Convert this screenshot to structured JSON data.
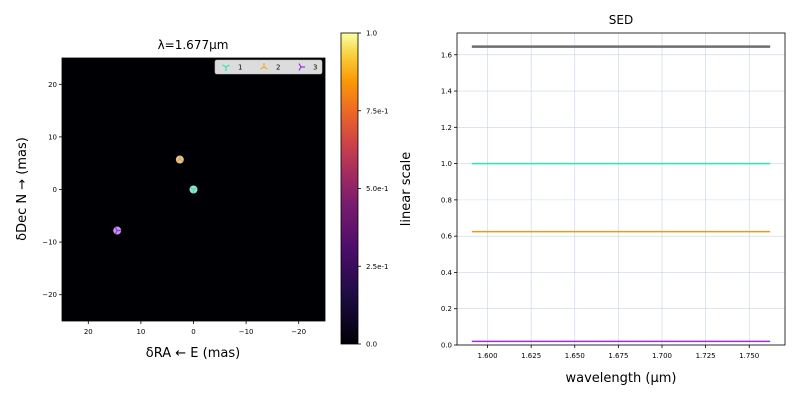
{
  "chart_data": [
    {
      "type": "heatmap",
      "title": "λ=1.677μm",
      "xlabel": "δRA ← E (mas)",
      "ylabel": "δDec N → (mas)",
      "xlim": [
        25,
        -25
      ],
      "ylim": [
        -25,
        25
      ],
      "xticks": [
        20,
        10,
        0,
        -10,
        -20
      ],
      "xtick_labels": [
        "20",
        "10",
        "0",
        "−10",
        "−20"
      ],
      "yticks": [
        20,
        10,
        0,
        -10,
        -20
      ],
      "ytick_labels": [
        "20",
        "10",
        "0",
        "−10",
        "−20"
      ],
      "background": "#000004",
      "legend_position": "top-right",
      "sources": [
        {
          "name": "1",
          "x": 0,
          "y": 0,
          "marker": "tri-down",
          "color": "#2ee6b0",
          "blob": "#a8ead2"
        },
        {
          "name": "2",
          "x": 2.6,
          "y": 5.7,
          "marker": "tri-up",
          "color": "#f4a620",
          "blob": "#e8d0b0"
        },
        {
          "name": "3",
          "x": 14.5,
          "y": -7.8,
          "marker": "tri-left",
          "color": "#9b2df0",
          "blob": "#c9a4e8"
        }
      ],
      "colorbar": {
        "label": "linear scale",
        "ticks": [
          0,
          0.25,
          0.5,
          0.75,
          1.0
        ],
        "tick_labels": [
          "0.0",
          "2.5e-1",
          "5.0e-1",
          "7.5e-1",
          "1.0"
        ],
        "colormap": "inferno"
      }
    },
    {
      "type": "line",
      "title": "SED",
      "xlabel": "wavelength (μm)",
      "ylabel": "",
      "xlim": [
        1.5825,
        1.7705
      ],
      "ylim": [
        0,
        1.72
      ],
      "xticks": [
        1.6,
        1.625,
        1.65,
        1.675,
        1.7,
        1.725,
        1.75
      ],
      "xtick_labels": [
        "1.600",
        "1.625",
        "1.650",
        "1.675",
        "1.700",
        "1.725",
        "1.750"
      ],
      "yticks": [
        0,
        0.2,
        0.4,
        0.6,
        0.8,
        1.0,
        1.2,
        1.4,
        1.6
      ],
      "ytick_labels": [
        "0.0",
        "0.2",
        "0.4",
        "0.6",
        "0.8",
        "1.0",
        "1.2",
        "1.4",
        "1.6"
      ],
      "grid": true,
      "series": [
        {
          "x": [
            1.591,
            1.762
          ],
          "values": [
            1.645,
            1.645
          ],
          "color": "#6e6e6e",
          "width": 2.5
        },
        {
          "x": [
            1.591,
            1.762
          ],
          "values": [
            1.0,
            1.0
          ],
          "color": "#2ee6b0",
          "width": 1.5
        },
        {
          "x": [
            1.591,
            1.762
          ],
          "values": [
            0.625,
            0.625
          ],
          "color": "#e89a1a",
          "width": 1.5
        },
        {
          "x": [
            1.591,
            1.762
          ],
          "values": [
            0.02,
            0.02
          ],
          "color": "#9b2df0",
          "width": 1.5
        }
      ]
    }
  ]
}
